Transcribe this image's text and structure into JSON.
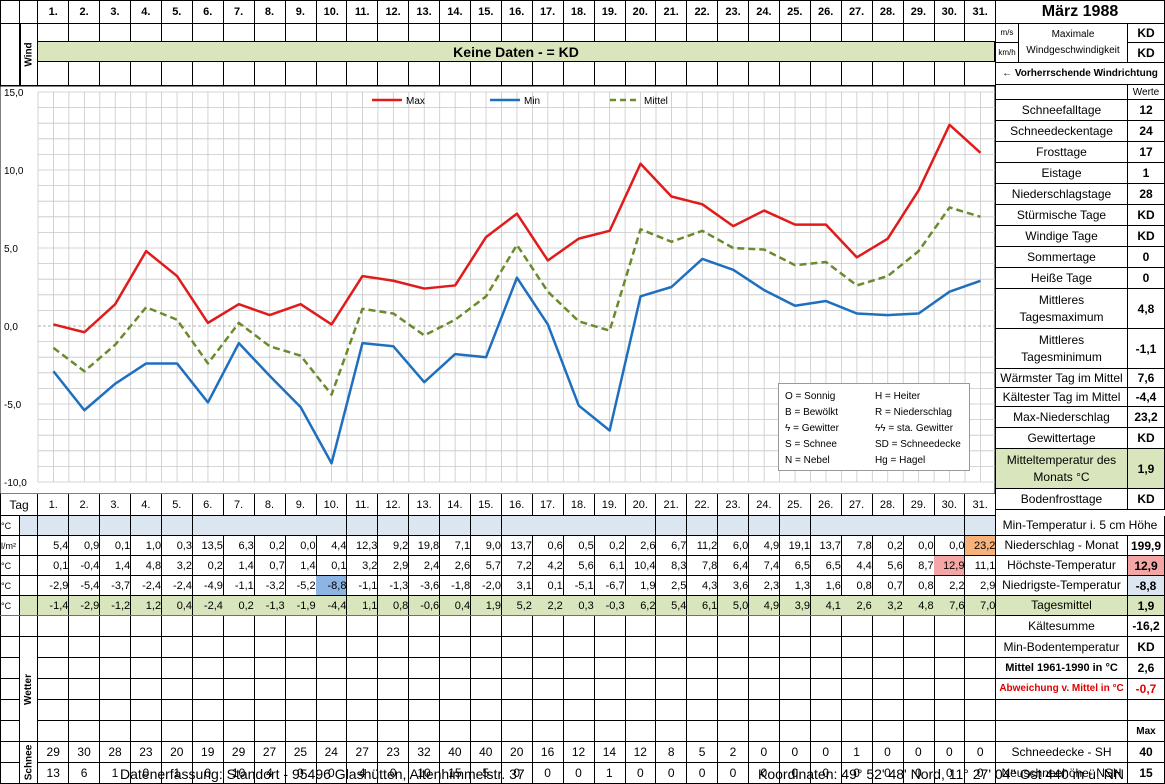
{
  "header": {
    "title": "März 1988",
    "days": [
      "1.",
      "2.",
      "3.",
      "4.",
      "5.",
      "6.",
      "7.",
      "8.",
      "9.",
      "10.",
      "11.",
      "12.",
      "13.",
      "14.",
      "15.",
      "16.",
      "17.",
      "18.",
      "19.",
      "20.",
      "21.",
      "22.",
      "23.",
      "24.",
      "25.",
      "26.",
      "27.",
      "28.",
      "29.",
      "30.",
      "31."
    ],
    "wind_label": "Wind",
    "no_data_text": "Keine Daten -  = KD",
    "unit_ms": "m/s",
    "unit_kmh": "km/h",
    "max_wind_label": "Maximale Windgeschwindigkeit",
    "max_wind_ms": "KD",
    "max_wind_kmh": "KD",
    "wind_direction_label": "← Vorherrschende Windrichtung"
  },
  "stats": {
    "werte_label": "Werte",
    "rows": [
      {
        "label": "Schneefalltage",
        "value": "12"
      },
      {
        "label": "Schneedeckentage",
        "value": "24"
      },
      {
        "label": "Frosttage",
        "value": "17"
      },
      {
        "label": "Eistage",
        "value": "1"
      },
      {
        "label": "Niederschlagstage",
        "value": "28"
      },
      {
        "label": "Stürmische Tage",
        "value": "KD"
      },
      {
        "label": "Windige Tage",
        "value": "KD"
      },
      {
        "label": "Sommertage",
        "value": "0"
      },
      {
        "label": "Heiße Tage",
        "value": "0"
      },
      {
        "label": "Mittleres Tagesmaximum",
        "value": "4,8"
      },
      {
        "label": "Mittleres Tagesminimum",
        "value": "-1,1"
      },
      {
        "label": "Wärmster Tag im Mittel",
        "value": "7,6"
      },
      {
        "label": "Kältester Tag im Mittel",
        "value": "-4,4"
      },
      {
        "label": "Max-Niederschlag",
        "value": "23,2"
      },
      {
        "label": "Gewittertage",
        "value": "KD"
      },
      {
        "label": "Mitteltemperatur des Monats °C",
        "value": "1,9"
      },
      {
        "label": "Bodenfrosttage",
        "value": "KD"
      }
    ]
  },
  "chart_data": {
    "type": "line",
    "x": [
      "1.",
      "2.",
      "3.",
      "4.",
      "5.",
      "6.",
      "7.",
      "8.",
      "9.",
      "10.",
      "11.",
      "12.",
      "13.",
      "14.",
      "15.",
      "16.",
      "17.",
      "18.",
      "19.",
      "20.",
      "21.",
      "22.",
      "23.",
      "24.",
      "25.",
      "26.",
      "27.",
      "28.",
      "29.",
      "30.",
      "31."
    ],
    "ylim": [
      -10,
      15
    ],
    "yticks": [
      "15,0",
      "10,0",
      "5,0",
      "0,0",
      "-5,0",
      "-10,0"
    ],
    "grid": true,
    "legend_position": "top",
    "series": [
      {
        "name": "Max",
        "color": "#e01b1b",
        "dashed": false,
        "values": [
          0.1,
          -0.4,
          1.4,
          4.8,
          3.2,
          0.2,
          1.4,
          0.7,
          1.4,
          0.1,
          3.2,
          2.9,
          2.4,
          2.6,
          5.7,
          7.2,
          4.2,
          5.6,
          6.1,
          10.4,
          8.3,
          7.8,
          6.4,
          7.4,
          6.5,
          6.5,
          4.4,
          5.6,
          8.7,
          12.9,
          11.1
        ]
      },
      {
        "name": "Min",
        "color": "#1f6fbf",
        "dashed": false,
        "values": [
          -2.9,
          -5.4,
          -3.7,
          -2.4,
          -2.4,
          -4.9,
          -1.1,
          -3.2,
          -5.2,
          -8.8,
          -1.1,
          -1.3,
          -3.6,
          -1.8,
          -2.0,
          3.1,
          0.1,
          -5.1,
          -6.7,
          1.9,
          2.5,
          4.3,
          3.6,
          2.3,
          1.3,
          1.6,
          0.8,
          0.7,
          0.8,
          2.2,
          2.9
        ]
      },
      {
        "name": "Mittel",
        "color": "#6b8a2e",
        "dashed": true,
        "values": [
          -1.4,
          -2.9,
          -1.2,
          1.2,
          0.4,
          -2.4,
          0.2,
          -1.3,
          -1.9,
          -4.4,
          1.1,
          0.8,
          -0.6,
          0.4,
          1.9,
          5.2,
          2.2,
          0.3,
          -0.3,
          6.2,
          5.4,
          6.1,
          5.0,
          4.9,
          3.9,
          4.1,
          2.6,
          3.2,
          4.8,
          7.6,
          7.0
        ]
      }
    ]
  },
  "legend_box": {
    "items": [
      [
        "O = Sonnig",
        "H = Heiter"
      ],
      [
        "B = Bewölkt",
        "R = Niederschlag"
      ],
      [
        "ϟ = Gewitter",
        "ϟϟ = sta. Gewitter"
      ],
      [
        "S = Schnee",
        "SD = Schneedecke"
      ],
      [
        "N = Nebel",
        "Hg = Hagel"
      ]
    ]
  },
  "table": {
    "tag_label": "Tag",
    "rows": [
      {
        "unit": "°C",
        "label": "Min-Temperatur i. 5 cm Höhe",
        "summary": "",
        "values": [
          "",
          "",
          "",
          "",
          "",
          "",
          "",
          "",
          "",
          "",
          "",
          "",
          "",
          "",
          "",
          "",
          "",
          "",
          "",
          "",
          "",
          "",
          "",
          "",
          "",
          "",
          "",
          "",
          "",
          "",
          ""
        ]
      },
      {
        "unit": "l/m²",
        "label": "Niederschlag - Monat",
        "summary": "199,9",
        "values": [
          "5,4",
          "0,9",
          "0,1",
          "1,0",
          "0,3",
          "13,5",
          "6,3",
          "0,2",
          "0,0",
          "4,4",
          "12,3",
          "9,2",
          "19,8",
          "7,1",
          "9,0",
          "13,7",
          "0,6",
          "0,5",
          "0,2",
          "2,6",
          "6,7",
          "11,2",
          "6,0",
          "4,9",
          "19,1",
          "13,7",
          "7,8",
          "0,2",
          "0,0",
          "0,0",
          "23,2"
        ]
      },
      {
        "unit": "°C",
        "label": "Höchste-Temperatur",
        "summary": "12,9",
        "values": [
          "0,1",
          "-0,4",
          "1,4",
          "4,8",
          "3,2",
          "0,2",
          "1,4",
          "0,7",
          "1,4",
          "0,1",
          "3,2",
          "2,9",
          "2,4",
          "2,6",
          "5,7",
          "7,2",
          "4,2",
          "5,6",
          "6,1",
          "10,4",
          "8,3",
          "7,8",
          "6,4",
          "7,4",
          "6,5",
          "6,5",
          "4,4",
          "5,6",
          "8,7",
          "12,9",
          "11,1"
        ]
      },
      {
        "unit": "°C",
        "label": "Niedrigste-Temperatur",
        "summary": "-8,8",
        "values": [
          "-2,9",
          "-5,4",
          "-3,7",
          "-2,4",
          "-2,4",
          "-4,9",
          "-1,1",
          "-3,2",
          "-5,2",
          "-8,8",
          "-1,1",
          "-1,3",
          "-3,6",
          "-1,8",
          "-2,0",
          "3,1",
          "0,1",
          "-5,1",
          "-6,7",
          "1,9",
          "2,5",
          "4,3",
          "3,6",
          "2,3",
          "1,3",
          "1,6",
          "0,8",
          "0,7",
          "0,8",
          "2,2",
          "2,9"
        ]
      },
      {
        "unit": "°C",
        "label": "Tagesmittel",
        "summary": "1,9",
        "values": [
          "-1,4",
          "-2,9",
          "-1,2",
          "1,2",
          "0,4",
          "-2,4",
          "0,2",
          "-1,3",
          "-1,9",
          "-4,4",
          "1,1",
          "0,8",
          "-0,6",
          "0,4",
          "1,9",
          "5,2",
          "2,2",
          "0,3",
          "-0,3",
          "6,2",
          "5,4",
          "6,1",
          "5,0",
          "4,9",
          "3,9",
          "4,1",
          "2,6",
          "3,2",
          "4,8",
          "7,6",
          "7,0"
        ]
      }
    ],
    "extra_rows": [
      {
        "label": "Kältesumme",
        "summary": "-16,2",
        "style": "normal"
      },
      {
        "label": "Min-Bodentemperatur",
        "summary": "KD",
        "style": "normal"
      },
      {
        "label": "Mittel 1961-1990 in °C",
        "summary": "2,6",
        "style": "bold"
      },
      {
        "label": "Abweichung v. Mittel in °C",
        "summary": "-0,7",
        "style": "red"
      }
    ],
    "wetter_label": "Wetter",
    "max_label": "Max",
    "schnee_label": "Schnee",
    "snow_depth": {
      "label": "Schneedecke -  SH",
      "summary": "40",
      "values": [
        "29",
        "30",
        "28",
        "23",
        "20",
        "19",
        "29",
        "27",
        "25",
        "24",
        "27",
        "23",
        "32",
        "40",
        "40",
        "20",
        "16",
        "12",
        "14",
        "12",
        "8",
        "5",
        "2",
        "0",
        "0",
        "0",
        "1",
        "0",
        "0",
        "0",
        "0"
      ]
    },
    "new_snow": {
      "label": "Neuschneehöhe- NSH",
      "summary": "15",
      "values": [
        "13",
        "6",
        "1",
        "0",
        "1",
        "0",
        "10",
        "4",
        "0",
        "0",
        "4",
        "0",
        "10",
        "15",
        "5",
        "0",
        "0",
        "0",
        "1",
        "0",
        "0",
        "0",
        "0",
        "0",
        "0",
        "0",
        "0",
        "0",
        "0",
        "0",
        "0"
      ]
    }
  },
  "footer": {
    "left": "Datenerfassung:  Standort -  95496  Glashütten, Altenhimmelstr. 37",
    "right": "Koordinaten:  49° 52' 48' Nord,  11° 27' 04'' Ost   440 m ü. NN"
  },
  "colors": {
    "light_green": "#d9e5bc",
    "light_blue": "#dce6f1",
    "highlight_blue": "#8db4e2",
    "highlight_red": "#f4a6a6",
    "highlight_orange": "#f7b27a",
    "max_line": "#e01b1b",
    "min_line": "#1f6fbf",
    "mean_line": "#6b8a2e"
  }
}
